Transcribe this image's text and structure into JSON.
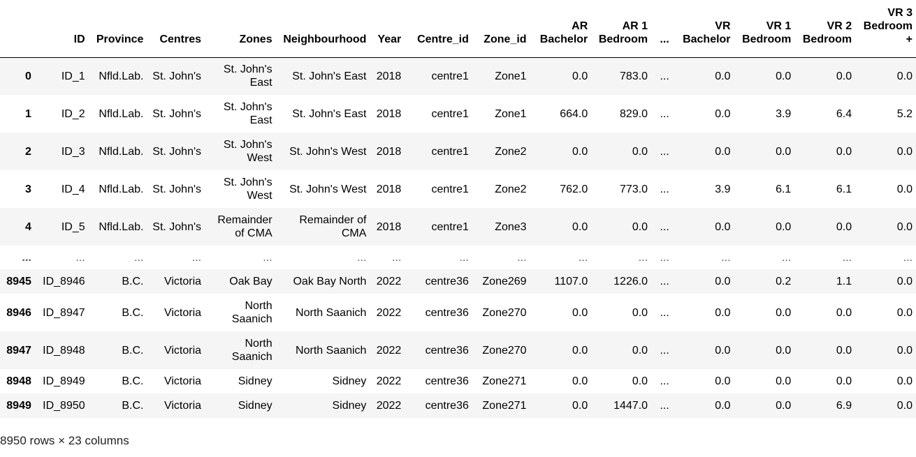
{
  "table": {
    "columns": [
      "",
      "ID",
      "Province",
      "Centres",
      "Zones",
      "Neighbourhood",
      "Year",
      "Centre_id",
      "Zone_id",
      "AR Bachelor",
      "AR 1 Bedroom",
      "...",
      "VR Bachelor",
      "VR 1 Bedroom",
      "VR 2 Bedroom",
      "VR 3 Bedroom +"
    ],
    "rows": [
      {
        "index": "0",
        "cells": [
          "ID_1",
          "Nfld.Lab.",
          "St. John's",
          "St. John's East",
          "St. John's East",
          "2018",
          "centre1",
          "Zone1",
          "0.0",
          "783.0",
          "...",
          "0.0",
          "0.0",
          "0.0",
          "0.0"
        ]
      },
      {
        "index": "1",
        "cells": [
          "ID_2",
          "Nfld.Lab.",
          "St. John's",
          "St. John's East",
          "St. John's East",
          "2018",
          "centre1",
          "Zone1",
          "664.0",
          "829.0",
          "...",
          "0.0",
          "3.9",
          "6.4",
          "5.2"
        ]
      },
      {
        "index": "2",
        "cells": [
          "ID_3",
          "Nfld.Lab.",
          "St. John's",
          "St. John's West",
          "St. John's West",
          "2018",
          "centre1",
          "Zone2",
          "0.0",
          "0.0",
          "...",
          "0.0",
          "0.0",
          "0.0",
          "0.0"
        ]
      },
      {
        "index": "3",
        "cells": [
          "ID_4",
          "Nfld.Lab.",
          "St. John's",
          "St. John's West",
          "St. John's West",
          "2018",
          "centre1",
          "Zone2",
          "762.0",
          "773.0",
          "...",
          "3.9",
          "6.1",
          "6.1",
          "0.0"
        ]
      },
      {
        "index": "4",
        "cells": [
          "ID_5",
          "Nfld.Lab.",
          "St. John's",
          "Remainder of CMA",
          "Remainder of CMA",
          "2018",
          "centre1",
          "Zone3",
          "0.0",
          "0.0",
          "...",
          "0.0",
          "0.0",
          "0.0",
          "0.0"
        ]
      },
      {
        "index": "...",
        "cells": [
          "...",
          "...",
          "...",
          "...",
          "...",
          "...",
          "...",
          "...",
          "...",
          "...",
          "...",
          "...",
          "...",
          "...",
          "..."
        ]
      },
      {
        "index": "8945",
        "cells": [
          "ID_8946",
          "B.C.",
          "Victoria",
          "Oak Bay",
          "Oak Bay North",
          "2022",
          "centre36",
          "Zone269",
          "1107.0",
          "1226.0",
          "...",
          "0.0",
          "0.2",
          "1.1",
          "0.0"
        ]
      },
      {
        "index": "8946",
        "cells": [
          "ID_8947",
          "B.C.",
          "Victoria",
          "North Saanich",
          "North Saanich",
          "2022",
          "centre36",
          "Zone270",
          "0.0",
          "0.0",
          "...",
          "0.0",
          "0.0",
          "0.0",
          "0.0"
        ]
      },
      {
        "index": "8947",
        "cells": [
          "ID_8948",
          "B.C.",
          "Victoria",
          "North Saanich",
          "North Saanich",
          "2022",
          "centre36",
          "Zone270",
          "0.0",
          "0.0",
          "...",
          "0.0",
          "0.0",
          "0.0",
          "0.0"
        ]
      },
      {
        "index": "8948",
        "cells": [
          "ID_8949",
          "B.C.",
          "Victoria",
          "Sidney",
          "Sidney",
          "2022",
          "centre36",
          "Zone271",
          "0.0",
          "0.0",
          "...",
          "0.0",
          "0.0",
          "0.0",
          "0.0"
        ]
      },
      {
        "index": "8949",
        "cells": [
          "ID_8950",
          "B.C.",
          "Victoria",
          "Sidney",
          "Sidney",
          "2022",
          "centre36",
          "Zone271",
          "0.0",
          "1447.0",
          "...",
          "0.0",
          "0.0",
          "6.9",
          "0.0"
        ]
      }
    ]
  },
  "footer": "8950 rows × 23 columns",
  "colors": {
    "stripe": "#f5f5f5",
    "background": "#ffffff",
    "header_rule": "#000000"
  }
}
